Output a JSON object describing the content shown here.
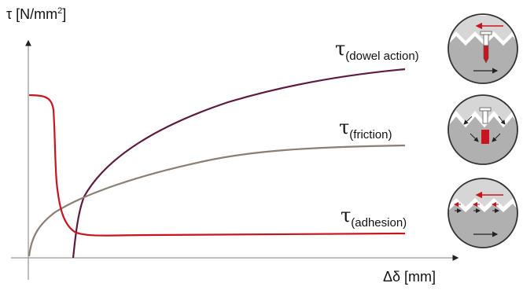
{
  "diagram": {
    "y_axis_label": {
      "main": "τ [N/mm",
      "sup": "2",
      "tail": "]"
    },
    "x_axis_label": "Δδ [mm]",
    "curves": [
      {
        "id": "dowel",
        "symbol": "τ",
        "subscript": "(dowel action)",
        "color": "#5b1a3e"
      },
      {
        "id": "friction",
        "symbol": "τ",
        "subscript": "(friction)",
        "color": "#8a7f74"
      },
      {
        "id": "adhesion",
        "symbol": "τ",
        "subscript": "(adhesion)",
        "color": "#c8141e"
      }
    ],
    "illustrations": [
      {
        "id": "dowel-action-illustration",
        "accent": "#c8141e"
      },
      {
        "id": "friction-illustration",
        "accent": "#c8141e"
      },
      {
        "id": "adhesion-illustration",
        "accent": "#c8141e"
      }
    ]
  }
}
